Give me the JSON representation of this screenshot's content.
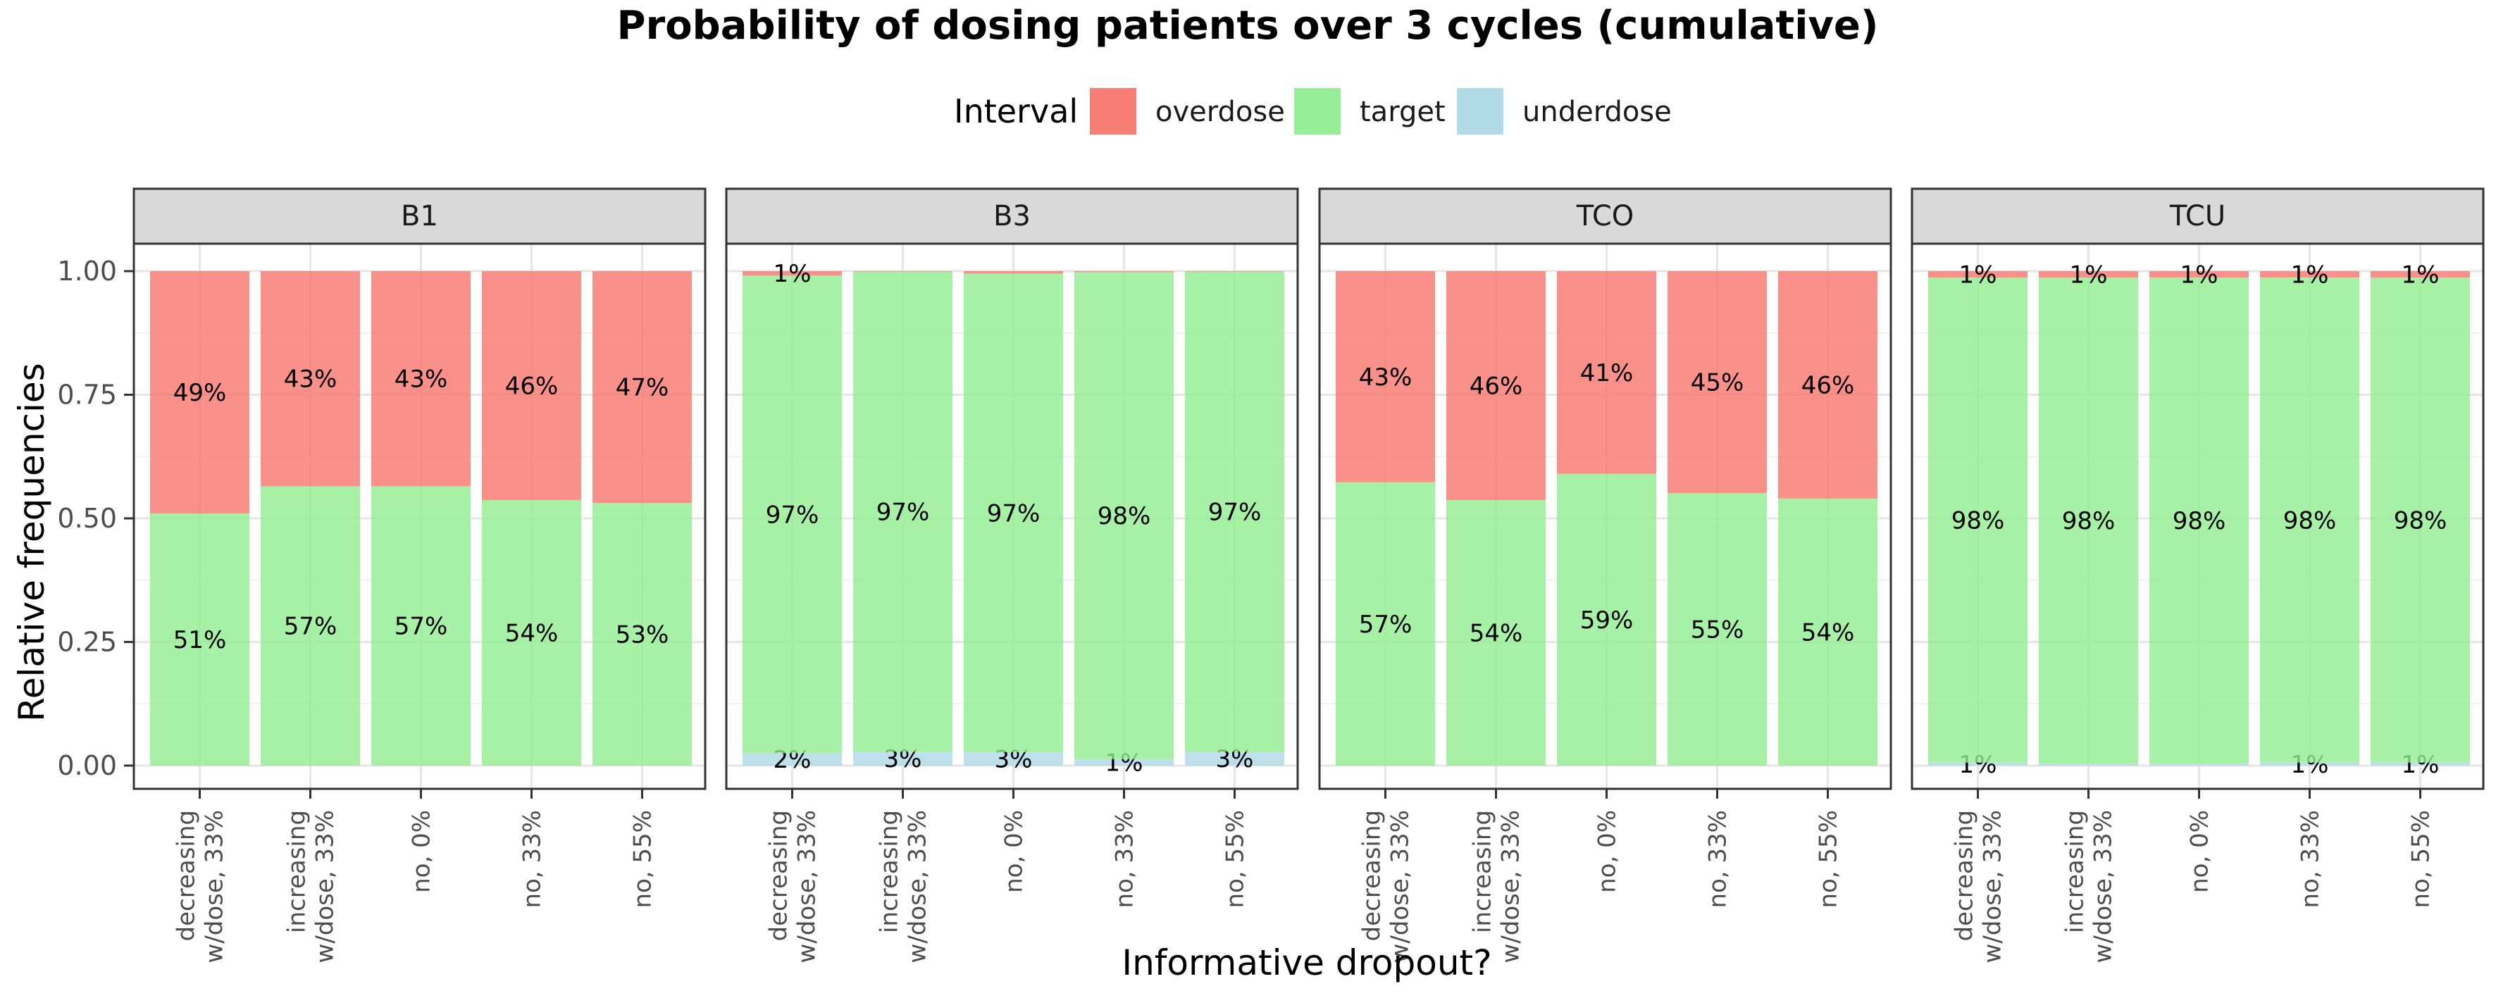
{
  "chart_data": {
    "type": "bar",
    "stacked": true,
    "title": "Probability of dosing patients over 3 cycles (cumulative)",
    "xlabel": "Informative dropout?",
    "ylabel": "Relative frequencies",
    "ylim": [
      0,
      1
    ],
    "yticks": [
      "0.00",
      "0.25",
      "0.50",
      "0.75",
      "1.00"
    ],
    "grid": true,
    "legend": {
      "title": "Interval",
      "position": "top",
      "entries": [
        {
          "label": "overdose",
          "color": "#f8766d"
        },
        {
          "label": "target",
          "color": "#90ee90"
        },
        {
          "label": "underdose",
          "color": "#add8e6"
        }
      ]
    },
    "categories": [
      [
        "decreasing",
        "w/dose, 33%"
      ],
      [
        "increasing",
        "w/dose, 33%"
      ],
      [
        "no, 0%"
      ],
      [
        "no, 33%"
      ],
      [
        "no, 55%"
      ]
    ],
    "panels": [
      {
        "name": "B1",
        "underdose": [
          0,
          0,
          0,
          0,
          0
        ],
        "target": [
          0.51,
          0.565,
          0.565,
          0.537,
          0.531
        ],
        "overdose": [
          0.49,
          0.435,
          0.435,
          0.463,
          0.469
        ],
        "labels": {
          "underdose": [
            "",
            "",
            "",
            "",
            ""
          ],
          "target": [
            "51%",
            "57%",
            "57%",
            "54%",
            "53%"
          ],
          "overdose": [
            "49%",
            "43%",
            "43%",
            "46%",
            "47%"
          ]
        }
      },
      {
        "name": "B3",
        "underdose": [
          0.025,
          0.028,
          0.027,
          0.013,
          0.028
        ],
        "target": [
          0.966,
          0.971,
          0.968,
          0.985,
          0.971
        ],
        "overdose": [
          0.009,
          0.001,
          0.005,
          0.002,
          0.001
        ],
        "labels": {
          "underdose": [
            "2%",
            "3%",
            "3%",
            "1%",
            "3%"
          ],
          "target": [
            "97%",
            "97%",
            "97%",
            "98%",
            "97%"
          ],
          "overdose": [
            "1%",
            "",
            "",
            "",
            ""
          ]
        }
      },
      {
        "name": "TCO",
        "underdose": [
          0,
          0,
          0,
          0,
          0
        ],
        "target": [
          0.573,
          0.537,
          0.59,
          0.551,
          0.54
        ],
        "overdose": [
          0.427,
          0.463,
          0.41,
          0.449,
          0.46
        ],
        "labels": {
          "underdose": [
            "",
            "",
            "",
            "",
            ""
          ],
          "target": [
            "57%",
            "54%",
            "59%",
            "55%",
            "54%"
          ],
          "overdose": [
            "43%",
            "46%",
            "41%",
            "45%",
            "46%"
          ]
        }
      },
      {
        "name": "TCU",
        "underdose": [
          0.006,
          0.004,
          0.004,
          0.006,
          0.006
        ],
        "target": [
          0.981,
          0.983,
          0.983,
          0.981,
          0.981
        ],
        "overdose": [
          0.013,
          0.013,
          0.013,
          0.013,
          0.013
        ],
        "labels": {
          "underdose": [
            "1%",
            "",
            "",
            "1%",
            "1%"
          ],
          "target": [
            "98%",
            "98%",
            "98%",
            "98%",
            "98%"
          ],
          "overdose": [
            "1%",
            "1%",
            "1%",
            "1%",
            "1%"
          ]
        }
      }
    ]
  }
}
